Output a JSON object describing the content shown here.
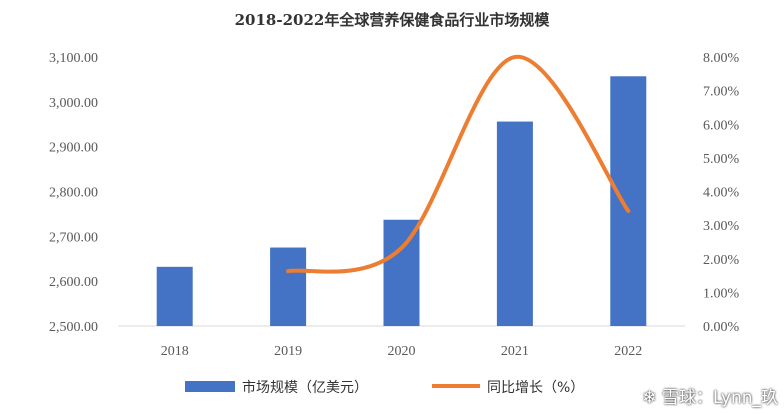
{
  "chart_data": {
    "type": "bar",
    "title": "2018-2022年全球营养保健食品行业市场规模",
    "categories": [
      "2018",
      "2019",
      "2020",
      "2021",
      "2022"
    ],
    "series": [
      {
        "name": "市场规模（亿美元）",
        "type": "bar",
        "axis": "left",
        "values": [
          2632,
          2675,
          2737,
          2956,
          3057
        ],
        "color": "#4472C4"
      },
      {
        "name": "同比增长（%）",
        "type": "smooth-line",
        "axis": "right",
        "values": [
          null,
          1.63,
          2.32,
          8.0,
          3.42
        ],
        "color": "#ED7D31"
      }
    ],
    "y_left": {
      "min": 2500,
      "max": 3100,
      "step": 100,
      "tick_labels": [
        "2,500.00",
        "2,600.00",
        "2,700.00",
        "2,800.00",
        "2,900.00",
        "3,000.00",
        "3,100.00"
      ]
    },
    "y_right": {
      "min": 0,
      "max": 8,
      "step": 1,
      "tick_labels": [
        "0.00%",
        "1.00%",
        "2.00%",
        "3.00%",
        "4.00%",
        "5.00%",
        "6.00%",
        "7.00%",
        "8.00%"
      ]
    },
    "grid": false,
    "legend": "bottom-center"
  },
  "watermark": {
    "icon": "snowball-logo-icon",
    "text": "雪球：Lynn_玖"
  }
}
